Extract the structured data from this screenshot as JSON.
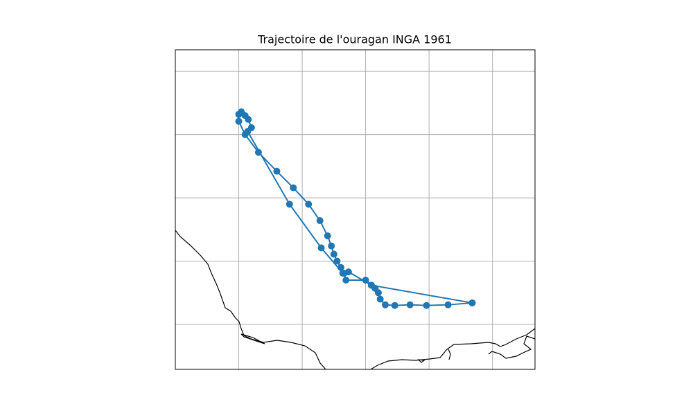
{
  "chart_data": {
    "type": "line",
    "title": "Trajectoire de l'ouragan INGA 1961",
    "x": [
      -92.32,
      -92.7,
      -93.04,
      -93.3,
      -93.54,
      -93.69,
      -93.77,
      -93.8,
      -93.85,
      -93.91,
      -94.0,
      -94.31,
      -94.34,
      -94.39,
      -94.45,
      -94.5,
      -94.54,
      -94.6,
      -94.72,
      -94.9,
      -95.14,
      -95.4,
      -95.69,
      -95.9,
      -96.0,
      -96.0,
      -95.96,
      -95.9,
      -95.85,
      -95.8,
      -95.86,
      -95.2,
      -94.7,
      -94.36,
      -94.27,
      -93.91,
      -92.32
    ],
    "series": [
      {
        "color": "#1f77b4",
        "values": [
          19.34,
          19.31,
          19.3,
          19.31,
          19.3,
          19.31,
          19.4,
          19.5,
          19.57,
          19.62,
          19.7,
          19.7,
          19.81,
          19.9,
          20.0,
          20.11,
          20.24,
          20.4,
          20.64,
          20.9,
          21.16,
          21.42,
          21.72,
          22.0,
          22.21,
          22.32,
          22.36,
          22.3,
          22.24,
          22.11,
          22.05,
          20.9,
          20.21,
          19.81,
          19.83,
          19.62,
          19.34
        ]
      }
    ],
    "xlim": [
      -97,
      -91.33
    ],
    "ylim": [
      18.29,
      23.34
    ],
    "x_gridlines": [
      -96,
      -95,
      -94,
      -93,
      -92
    ],
    "y_gridlines": [
      19,
      20,
      21,
      22,
      23
    ],
    "grid": true
  }
}
